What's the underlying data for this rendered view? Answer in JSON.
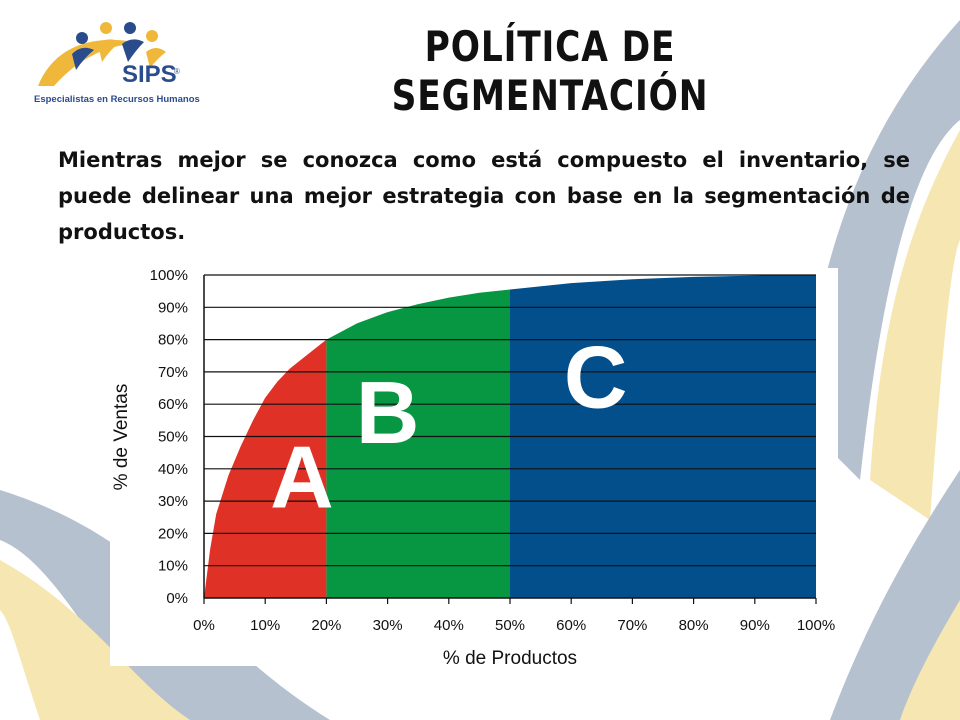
{
  "slide": {
    "title": "POLÍTICA DE SEGMENTACIÓN",
    "body": "Mientras mejor se conozca como está compuesto el inventario, se puede delinear una mejor estrategia con base en la segmentación de productos.",
    "logo": {
      "brand": "SIPS",
      "registered": "®",
      "tagline": "Especialistas en Recursos Humanos",
      "colors": {
        "arc": "#f0b83a",
        "text": "#2a4c8c"
      }
    },
    "background_colors": {
      "grey": "#b6c1cf",
      "cream": "#f6e6b2"
    }
  },
  "chart_data": {
    "type": "area",
    "title": "",
    "xlabel": "% de Productos",
    "ylabel": "% de Ventas",
    "xlim": [
      0,
      100
    ],
    "ylim": [
      0,
      100
    ],
    "grid": "horizontal",
    "x_ticks": [
      "0%",
      "10%",
      "20%",
      "30%",
      "40%",
      "50%",
      "60%",
      "70%",
      "80%",
      "90%",
      "100%"
    ],
    "y_ticks": [
      "0%",
      "10%",
      "20%",
      "30%",
      "40%",
      "50%",
      "60%",
      "70%",
      "80%",
      "90%",
      "100%"
    ],
    "curve": {
      "x": [
        0,
        1,
        2,
        4,
        6,
        8,
        10,
        12,
        14,
        16,
        18,
        20,
        25,
        30,
        35,
        40,
        45,
        50,
        60,
        70,
        80,
        90,
        100
      ],
      "y": [
        0,
        15,
        26,
        38,
        47,
        55,
        62,
        67,
        71,
        74,
        77,
        80,
        85,
        88.5,
        91,
        93,
        94.5,
        95.5,
        97.5,
        98.7,
        99.4,
        99.8,
        100
      ]
    },
    "segments": [
      {
        "label": "A",
        "x_start": 0,
        "x_end": 20,
        "color": "#e03127"
      },
      {
        "label": "B",
        "x_start": 20,
        "x_end": 50,
        "color": "#079642"
      },
      {
        "label": "C",
        "x_start": 50,
        "x_end": 100,
        "color": "#034f8b"
      }
    ]
  }
}
